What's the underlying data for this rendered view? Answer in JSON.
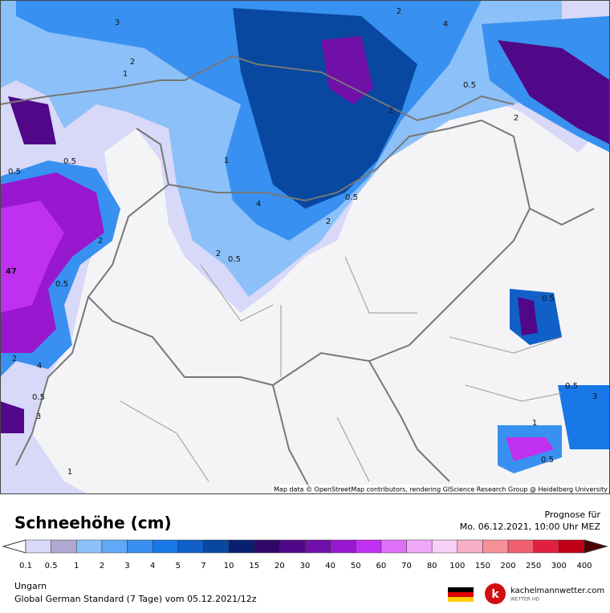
{
  "map": {
    "attribution": "Map data © OpenStreetMap contributors, rendering GIScience Research Group @ Heidelberg University",
    "labels": [
      "3",
      "2",
      "1",
      "2",
      "4",
      "0.5",
      "2",
      "1",
      "4",
      "2",
      "0.5",
      "2",
      "0.5",
      "0.5",
      "0.5",
      "2",
      "47",
      "0.5",
      "2",
      "4",
      "0.5",
      "3",
      "1",
      "0.5",
      "0.5",
      "3",
      "1",
      "0.5",
      "2"
    ]
  },
  "legend": {
    "title": "Schneehöhe (cm)",
    "ticks": [
      "0.1",
      "0.5",
      "1",
      "2",
      "3",
      "4",
      "5",
      "7",
      "10",
      "15",
      "20",
      "30",
      "40",
      "50",
      "60",
      "70",
      "80",
      "100",
      "150",
      "200",
      "250",
      "300",
      "400"
    ],
    "colors": [
      "#d8d8f8",
      "#b0a8d0",
      "#8cc0f8",
      "#60a8f8",
      "#3890f0",
      "#1878e8",
      "#1060c8",
      "#0848a0",
      "#082070",
      "#300868",
      "#500888",
      "#7010a8",
      "#9818d0",
      "#c030f0",
      "#e070f8",
      "#f0a8f8",
      "#f8d0f8",
      "#f8b0c8",
      "#f89098",
      "#f06070",
      "#e02040",
      "#c00018"
    ],
    "over_color": "#500000"
  },
  "forecast": {
    "label": "Prognose für",
    "time": "Mo. 06.12.2021, 10:00 Uhr MEZ"
  },
  "footer": {
    "region": "Ungarn",
    "model": "Global German Standard (7 Tage) vom 05.12.2021/12z"
  },
  "brand": {
    "name": "kachelmannwetter.com",
    "sub": "WETTER HD"
  }
}
